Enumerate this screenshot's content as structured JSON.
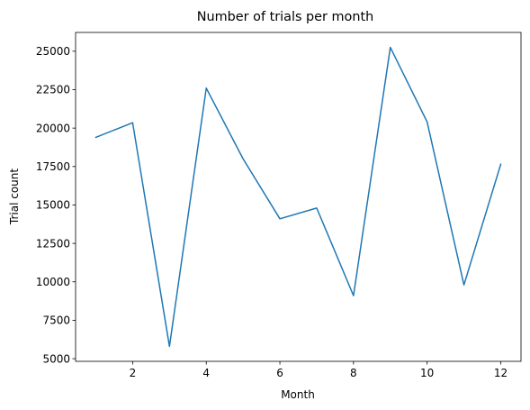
{
  "chart_data": {
    "type": "line",
    "title": "Number of trials per month",
    "xlabel": "Month",
    "ylabel": "Trial count",
    "x": [
      1,
      2,
      3,
      4,
      5,
      6,
      7,
      8,
      9,
      10,
      11,
      12
    ],
    "series": [
      {
        "values": [
          19400,
          20350,
          5800,
          22600,
          18000,
          14100,
          14800,
          9100,
          25250,
          20400,
          9800,
          17650
        ],
        "color": "#1f77b4"
      }
    ],
    "xticks": [
      2,
      4,
      6,
      8,
      10,
      12
    ],
    "yticks": [
      5000,
      7500,
      10000,
      12500,
      15000,
      17500,
      20000,
      22500,
      25000
    ],
    "xlim": [
      0.45,
      12.55
    ],
    "ylim": [
      4827.5,
      26222.5
    ],
    "grid": false,
    "legend": "none"
  }
}
